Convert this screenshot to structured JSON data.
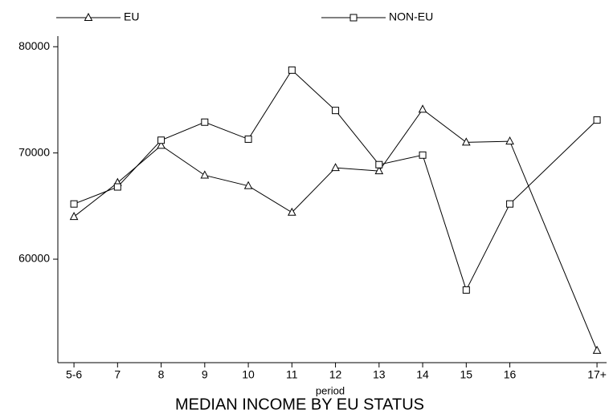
{
  "chart_data": {
    "type": "line",
    "title": "MEDIAN INCOME BY EU STATUS",
    "x_label": "period",
    "x": [
      6,
      7,
      8,
      9,
      10,
      11,
      12,
      13,
      14,
      15,
      16,
      18
    ],
    "xlim": [
      5.63,
      18.22
    ],
    "xticks": [
      {
        "value": 6,
        "label": "5-6"
      },
      7,
      8,
      9,
      10,
      11,
      12,
      13,
      14,
      15,
      16,
      {
        "value": 18,
        "label": "17+"
      }
    ],
    "ylim": [
      50260,
      81000
    ],
    "yticks": [
      60000,
      70000,
      80000
    ],
    "series": [
      {
        "name": "EU",
        "color": "#000000",
        "marker": "triangle",
        "values": [
          64000,
          67200,
          70700,
          67900,
          66900,
          64400,
          68600,
          68300,
          74100,
          71000,
          71100,
          51400
        ]
      },
      {
        "name": "NON-EU",
        "color": "#000000",
        "marker": "square",
        "values": [
          65200,
          66800,
          71200,
          72900,
          71300,
          77800,
          74000,
          68900,
          69800,
          57100,
          65200,
          73100
        ]
      }
    ]
  }
}
